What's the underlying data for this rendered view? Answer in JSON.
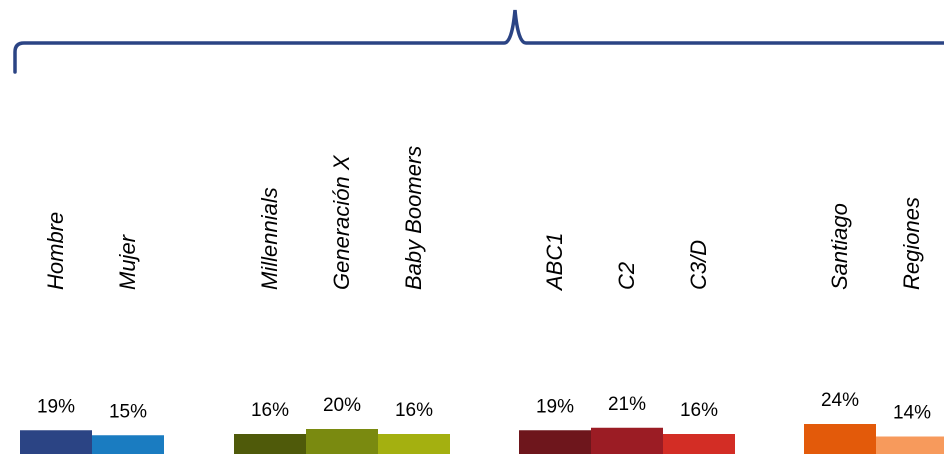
{
  "chart_data": {
    "type": "bar",
    "categories": [
      "Hombre",
      "Mujer",
      "Millennials",
      "Generación X",
      "Baby Boomers",
      "ABC1",
      "C2",
      "C3/D",
      "Santiago",
      "Regiones"
    ],
    "values": [
      19,
      15,
      16,
      20,
      16,
      19,
      21,
      16,
      24,
      14
    ],
    "value_labels": [
      "19%",
      "15%",
      "16%",
      "20%",
      "16%",
      "19%",
      "21%",
      "16%",
      "24%",
      "14%"
    ],
    "groups": [
      {
        "categories": [
          "Hombre",
          "Mujer"
        ]
      },
      {
        "categories": [
          "Millennials",
          "Generación X",
          "Baby Boomers"
        ]
      },
      {
        "categories": [
          "ABC1",
          "C2",
          "C3/D"
        ]
      },
      {
        "categories": [
          "Santiago",
          "Regiones"
        ]
      }
    ],
    "colors": [
      "#2b4484",
      "#1a7cc1",
      "#4f5a0a",
      "#7a8a10",
      "#a4b010",
      "#6e161c",
      "#9b1c24",
      "#d32d25",
      "#e35a0a",
      "#f79a5c"
    ],
    "brace_color": "#2b4484",
    "unit": "%",
    "title": "",
    "xlabel": "",
    "ylabel": "",
    "ylim": [
      0,
      25
    ],
    "grid": false,
    "legend": "none"
  }
}
